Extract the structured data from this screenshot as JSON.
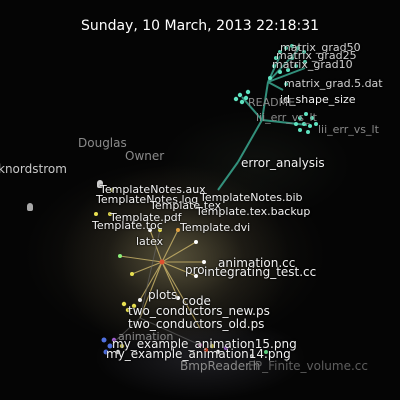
{
  "timestamp": "Sunday, 10 March, 2013 22:18:31",
  "users": [
    {
      "name": "Douglas",
      "role": "Owner"
    },
    {
      "name": "knordstrom"
    }
  ],
  "directories": {
    "top": {
      "name": "error_analysis",
      "child": "lii_err_vs_lt"
    },
    "center": {
      "name": "latex"
    }
  },
  "files": {
    "top_cluster": [
      "matrix_grad50",
      "matrix_grad25",
      "matrix_grad10",
      "matrix_grad.5.dat",
      "id_shape_size",
      "README",
      "lii_err_vs_lt"
    ],
    "center_cluster": [
      "TemplateNotes.bib",
      "Template.tex.backup",
      "Template.tex",
      "Template.pdf",
      "TemplateNotes.aux",
      "TemplateNotes.log",
      "Template.dvi",
      "Template.toc"
    ],
    "right_cluster": [
      "animation.cc",
      "integrating_test.cc",
      "pro"
    ],
    "lower_cluster": [
      "plots",
      "code",
      "two_conductors_new.ps",
      "two_conductors_old.ps",
      "animation",
      "my_example_animation15.png",
      "my_example_animation14.png",
      "BmpReader.h",
      "FP_Finite_volume.cc"
    ]
  },
  "colors": {
    "teal": "#5fe3c0",
    "green": "#5fd080",
    "bright_green": "#8cf07a",
    "yellow": "#e8e050",
    "orange": "#e0a040",
    "red": "#e05030",
    "white": "#ffffff",
    "blue": "#5070e0",
    "purple": "#a060d0",
    "pink": "#d070c0"
  }
}
